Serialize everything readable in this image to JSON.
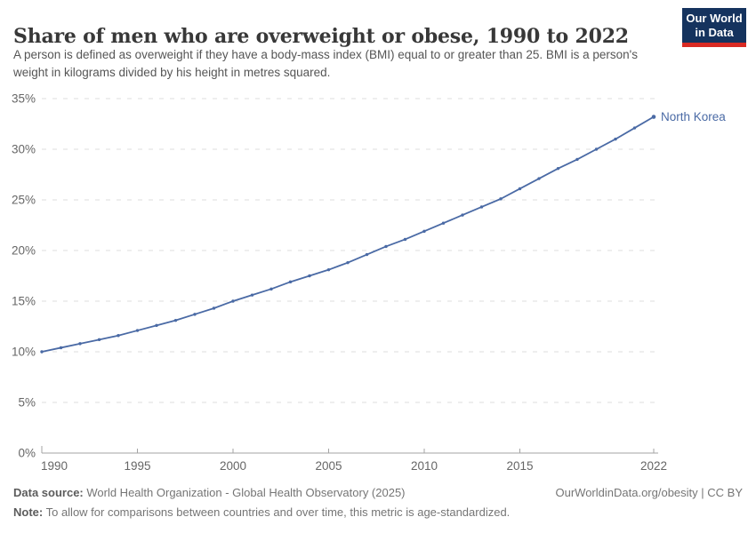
{
  "header": {
    "title": "Share of men who are overweight or obese, 1990 to 2022",
    "subtitle": "A person is defined as overweight if they have a body-mass index (BMI) equal to or greater than 25. BMI is a person's weight in kilograms divided by his height in metres squared.",
    "logo": {
      "line1": "Our World",
      "line2": "in Data",
      "bg_color": "#15335e",
      "accent_color": "#d92a23"
    }
  },
  "chart_data": {
    "type": "line",
    "title": "Share of men who are overweight or obese, 1990 to 2022",
    "xlabel": "",
    "ylabel": "",
    "xlim": [
      1990,
      2022
    ],
    "ylim": [
      0,
      35
    ],
    "yticks": [
      0,
      5,
      10,
      15,
      20,
      25,
      30,
      35
    ],
    "ytick_suffix": "%",
    "xticks": [
      1990,
      1995,
      2000,
      2005,
      2010,
      2015,
      2022
    ],
    "grid": "horizontal-dashed",
    "grid_color": "#dcdcdc",
    "axis_color": "#a3a3a3",
    "tick_label_color": "#666666",
    "legend_position": "end-of-line-label",
    "series": [
      {
        "name": "North Korea",
        "color": "#4a6aa5",
        "x": [
          1990,
          1991,
          1992,
          1993,
          1994,
          1995,
          1996,
          1997,
          1998,
          1999,
          2000,
          2001,
          2002,
          2003,
          2004,
          2005,
          2006,
          2007,
          2008,
          2009,
          2010,
          2011,
          2012,
          2013,
          2014,
          2015,
          2016,
          2017,
          2018,
          2019,
          2020,
          2021,
          2022
        ],
        "values": [
          10.0,
          10.4,
          10.8,
          11.2,
          11.6,
          12.1,
          12.6,
          13.1,
          13.7,
          14.3,
          15.0,
          15.6,
          16.2,
          16.9,
          17.5,
          18.1,
          18.8,
          19.6,
          20.4,
          21.1,
          21.9,
          22.7,
          23.5,
          24.3,
          25.1,
          26.1,
          27.1,
          28.1,
          29.0,
          30.0,
          31.0,
          32.1,
          33.2
        ]
      }
    ]
  },
  "footer": {
    "datasource_label": "Data source:",
    "datasource_text": " World Health Organization - Global Health Observatory (2025)",
    "license_text": "OurWorldinData.org/obesity | CC BY",
    "note_label": "Note:",
    "note_text": " To allow for comparisons between countries and over time, this metric is age-standardized."
  }
}
